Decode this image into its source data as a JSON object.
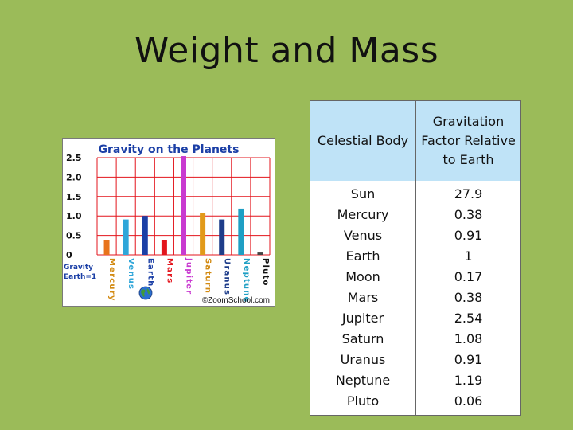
{
  "slide": {
    "title": "Weight and Mass"
  },
  "table": {
    "headers": [
      "Celestial Body",
      "Gravitation Factor Relative to Earth"
    ],
    "rows": [
      [
        "Sun",
        "27.9"
      ],
      [
        "Mercury",
        "0.38"
      ],
      [
        "Venus",
        "0.91"
      ],
      [
        "Earth",
        "1"
      ],
      [
        "Moon",
        "0.17"
      ],
      [
        "Mars",
        "0.38"
      ],
      [
        "Jupiter",
        "2.54"
      ],
      [
        "Saturn",
        "1.08"
      ],
      [
        "Uranus",
        "0.91"
      ],
      [
        "Neptune",
        "1.19"
      ],
      [
        "Pluto",
        "0.06"
      ]
    ]
  },
  "chart_data": {
    "type": "bar",
    "title": "Gravity on the Planets",
    "categories": [
      "Mercury",
      "Venus",
      "Earth",
      "Mars",
      "Jupiter",
      "Saturn",
      "Uranus",
      "Neptune",
      "Pluto"
    ],
    "values": [
      0.38,
      0.91,
      1.0,
      0.38,
      2.54,
      1.08,
      0.91,
      1.19,
      0.06
    ],
    "bar_colors": [
      "#e8731c",
      "#2fa6d9",
      "#1b3fa6",
      "#e3141c",
      "#c93ad0",
      "#e29a1a",
      "#1e3d8a",
      "#1f9fc4",
      "#444444"
    ],
    "label_colors": [
      "#d28a12",
      "#2fa6d9",
      "#1b3fa6",
      "#e3141c",
      "#c93ad0",
      "#d28a12",
      "#1e3d8a",
      "#1f9fc4",
      "#111111"
    ],
    "ylim": [
      0,
      2.5
    ],
    "yticks": [
      "0",
      "0.5",
      "1.0",
      "1.5",
      "2.0",
      "2.5"
    ],
    "ytick_values": [
      0,
      0.5,
      1.0,
      1.5,
      2.0,
      2.5
    ],
    "ylabel_lines": [
      "Gravity",
      "Earth=1"
    ],
    "credit": "©ZoomSchool.com",
    "grid": true,
    "grid_color": "#e3141c",
    "title_color": "#1b3fa6",
    "earth_icon": "globe-icon"
  }
}
